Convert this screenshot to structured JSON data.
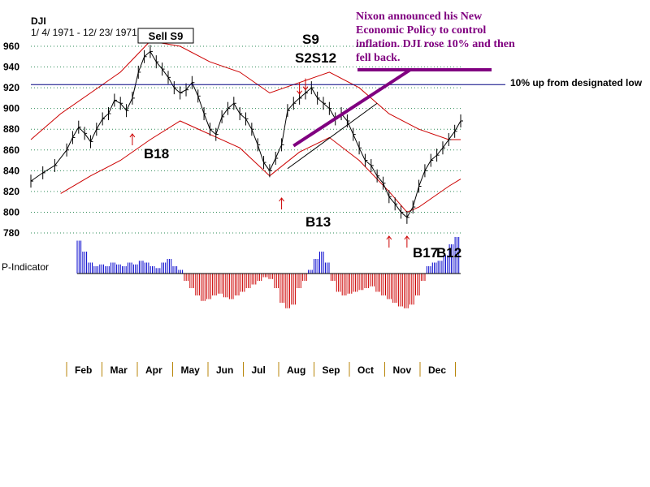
{
  "chart_data": {
    "type": "line",
    "title": "DJI",
    "subtitle": "1/ 4/ 1971 - 12/ 23/ 1971",
    "ylim": [
      780,
      960
    ],
    "yticks": [
      960,
      940,
      920,
      900,
      880,
      860,
      840,
      820,
      800,
      780
    ],
    "grid": true,
    "months": [
      "Feb",
      "Mar",
      "Apr",
      "May",
      "Jun",
      "Jul",
      "Aug",
      "Sep",
      "Oct",
      "Nov",
      "Dec"
    ],
    "reference_line": {
      "value": 923,
      "label": "10% up from designated low"
    },
    "price_series": [
      [
        0,
        830
      ],
      [
        2,
        838
      ],
      [
        4,
        845
      ],
      [
        6,
        860
      ],
      [
        7,
        872
      ],
      [
        8,
        882
      ],
      [
        9,
        876
      ],
      [
        10,
        868
      ],
      [
        11,
        880
      ],
      [
        12,
        890
      ],
      [
        13,
        895
      ],
      [
        14,
        908
      ],
      [
        15,
        905
      ],
      [
        16,
        898
      ],
      [
        17,
        910
      ],
      [
        18,
        935
      ],
      [
        19,
        950
      ],
      [
        20,
        955
      ],
      [
        21,
        945
      ],
      [
        22,
        938
      ],
      [
        23,
        930
      ],
      [
        24,
        920
      ],
      [
        25,
        915
      ],
      [
        26,
        918
      ],
      [
        27,
        925
      ],
      [
        28,
        912
      ],
      [
        29,
        895
      ],
      [
        30,
        880
      ],
      [
        31,
        875
      ],
      [
        32,
        892
      ],
      [
        33,
        900
      ],
      [
        34,
        905
      ],
      [
        35,
        895
      ],
      [
        36,
        890
      ],
      [
        37,
        880
      ],
      [
        38,
        865
      ],
      [
        39,
        848
      ],
      [
        40,
        840
      ],
      [
        41,
        852
      ],
      [
        42,
        865
      ],
      [
        43,
        898
      ],
      [
        44,
        905
      ],
      [
        45,
        910
      ],
      [
        46,
        915
      ],
      [
        47,
        920
      ],
      [
        48,
        910
      ],
      [
        49,
        905
      ],
      [
        50,
        900
      ],
      [
        51,
        890
      ],
      [
        52,
        895
      ],
      [
        53,
        888
      ],
      [
        54,
        875
      ],
      [
        55,
        862
      ],
      [
        56,
        850
      ],
      [
        57,
        845
      ],
      [
        58,
        835
      ],
      [
        59,
        828
      ],
      [
        60,
        815
      ],
      [
        61,
        808
      ],
      [
        62,
        800
      ],
      [
        63,
        795
      ],
      [
        64,
        805
      ],
      [
        65,
        825
      ],
      [
        66,
        840
      ],
      [
        67,
        850
      ],
      [
        68,
        855
      ],
      [
        69,
        862
      ],
      [
        70,
        870
      ],
      [
        71,
        878
      ],
      [
        72,
        888
      ]
    ],
    "upper_band": [
      [
        0,
        870
      ],
      [
        5,
        895
      ],
      [
        10,
        915
      ],
      [
        15,
        935
      ],
      [
        20,
        965
      ],
      [
        25,
        960
      ],
      [
        30,
        945
      ],
      [
        35,
        935
      ],
      [
        40,
        915
      ],
      [
        45,
        925
      ],
      [
        50,
        935
      ],
      [
        55,
        920
      ],
      [
        60,
        895
      ],
      [
        65,
        880
      ],
      [
        70,
        870
      ],
      [
        72,
        870
      ]
    ],
    "lower_band": [
      [
        5,
        818
      ],
      [
        10,
        835
      ],
      [
        15,
        850
      ],
      [
        20,
        870
      ],
      [
        25,
        888
      ],
      [
        30,
        875
      ],
      [
        35,
        862
      ],
      [
        40,
        835
      ],
      [
        45,
        858
      ],
      [
        50,
        872
      ],
      [
        55,
        850
      ],
      [
        60,
        820
      ],
      [
        63,
        800
      ],
      [
        65,
        805
      ],
      [
        70,
        825
      ],
      [
        72,
        832
      ]
    ],
    "p_indicator": {
      "label": "P-Indicator",
      "values": [
        0.9,
        0.6,
        0.3,
        0.2,
        0.25,
        0.2,
        0.3,
        0.25,
        0.2,
        0.3,
        0.25,
        0.35,
        0.3,
        0.2,
        0.15,
        0.3,
        0.4,
        0.2,
        0.1,
        -0.2,
        -0.4,
        -0.6,
        -0.75,
        -0.7,
        -0.6,
        -0.55,
        -0.65,
        -0.7,
        -0.6,
        -0.5,
        -0.4,
        -0.3,
        -0.2,
        -0.1,
        -0.15,
        -0.4,
        -0.8,
        -0.95,
        -0.85,
        -0.4,
        -0.2,
        0.1,
        0.4,
        0.6,
        0.3,
        -0.2,
        -0.5,
        -0.6,
        -0.55,
        -0.5,
        -0.45,
        -0.4,
        -0.35,
        -0.5,
        -0.6,
        -0.7,
        -0.8,
        -0.9,
        -0.95,
        -0.85,
        -0.6,
        -0.2,
        0.2,
        0.3,
        0.35,
        0.5,
        0.8,
        1.0
      ]
    },
    "signals": [
      {
        "label": "S9",
        "x": 45,
        "y": 914,
        "kind": "sell"
      },
      {
        "label": "S2S12",
        "x": 46,
        "y": 918,
        "kind": "sell"
      },
      {
        "label": "B18",
        "x": 17,
        "y": 870,
        "kind": "buy"
      },
      {
        "label": "B13",
        "x": 42,
        "y": 820,
        "kind": "buy"
      },
      {
        "label": "B17",
        "x": 60,
        "y": 780,
        "kind": "buy"
      },
      {
        "label": "B12",
        "x": 63,
        "y": 780,
        "kind": "buy"
      }
    ],
    "sell_box": {
      "label": "Sell S9",
      "x": 20
    },
    "annotation": "Nixon announced his New Economic Policy to control inflation.  DJI rose 10% and then fell back."
  }
}
